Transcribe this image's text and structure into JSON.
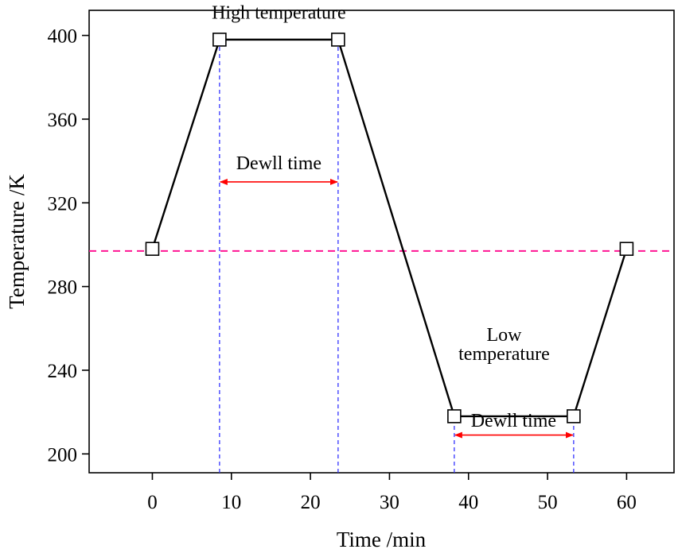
{
  "chart_data": {
    "type": "line",
    "xlabel": "Time /min",
    "ylabel": "Temperature /K",
    "xlim": [
      -8,
      66
    ],
    "ylim": [
      191,
      412
    ],
    "xticks": [
      0,
      10,
      20,
      30,
      40,
      50,
      60
    ],
    "yticks": [
      200,
      240,
      280,
      320,
      360,
      400
    ],
    "grid": false,
    "series": [
      {
        "values": [
          {
            "x": 0,
            "y": 298
          },
          {
            "x": 8.5,
            "y": 398
          },
          {
            "x": 23.5,
            "y": 398
          },
          {
            "x": 38.2,
            "y": 218
          },
          {
            "x": 53.3,
            "y": 218
          },
          {
            "x": 60,
            "y": 298
          }
        ],
        "line_color": "#000000",
        "marker": "open-square"
      }
    ],
    "reference_lines": {
      "horizontal": {
        "y": 297,
        "color": "#ff1493",
        "style": "dashed"
      },
      "vertical": [
        {
          "x": 8.5,
          "y_to": 398,
          "color": "#3333ff",
          "style": "dashed"
        },
        {
          "x": 23.5,
          "y_to": 398,
          "color": "#3333ff",
          "style": "dashed"
        },
        {
          "x": 38.2,
          "y_to": 218,
          "color": "#3333ff",
          "style": "dashed"
        },
        {
          "x": 53.3,
          "y_to": 218,
          "color": "#3333ff",
          "style": "dashed"
        }
      ]
    },
    "dwell_arrows": [
      {
        "x1": 8.5,
        "x2": 23.5,
        "y": 330,
        "color": "#ff0000"
      },
      {
        "x1": 38.2,
        "x2": 53.3,
        "y": 209,
        "color": "#ff0000"
      }
    ],
    "annotations": [
      {
        "text": "High temperature",
        "x": 16,
        "y": 408
      },
      {
        "text": "Dewll time",
        "x": 16,
        "y": 336
      },
      {
        "text": "Low",
        "x": 44.5,
        "y": 254
      },
      {
        "text": "temperature",
        "x": 44.5,
        "y": 245
      },
      {
        "text": "Dewll time",
        "x": 45.7,
        "y": 213
      }
    ]
  }
}
